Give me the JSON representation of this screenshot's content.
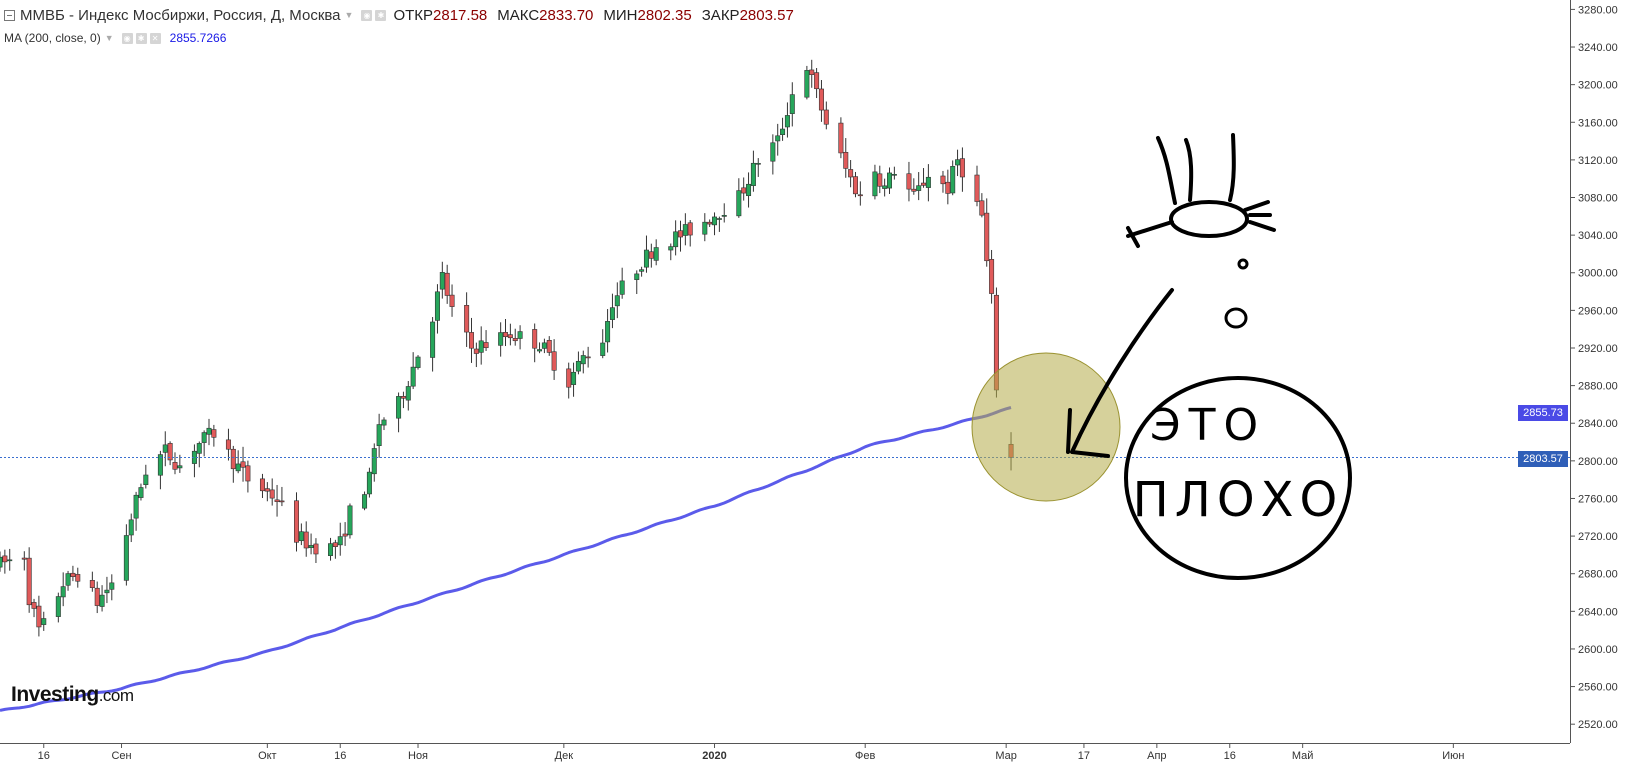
{
  "header": {
    "symbol": "ММВБ - Индекс Мосбиржи, Россия, Д, Москва",
    "open_label": "ОТКР",
    "open_value": "2817.58",
    "high_label": "МАКС",
    "high_value": "2833.70",
    "low_label": "МИН",
    "low_value": "2802.35",
    "close_label": "ЗАКР",
    "close_value": "2803.57"
  },
  "indicator": {
    "label": "MA (200, close, 0)",
    "value": "2855.7266"
  },
  "logo": {
    "main": "Investing",
    "suffix": ".com"
  },
  "price_tags": {
    "ma": "2855.73",
    "close": "2803.57"
  },
  "annotations": {
    "line1": "ЭТО",
    "line2": "ПЛОХО"
  },
  "colors": {
    "up": "#26a65b",
    "down": "#e05a5a",
    "ma_line": "#5b5bea",
    "highlight": "#b5ac48"
  },
  "chart_data": {
    "type": "candlestick",
    "y_axis": {
      "range": [
        2500,
        3290
      ],
      "ticks": [
        "2520.00",
        "2560.00",
        "2600.00",
        "2640.00",
        "2680.00",
        "2720.00",
        "2760.00",
        "2800.00",
        "2840.00",
        "2880.00",
        "2920.00",
        "2960.00",
        "3000.00",
        "3040.00",
        "3080.00",
        "3120.00",
        "3160.00",
        "3200.00",
        "3240.00",
        "3280.00"
      ],
      "tick_values": [
        2520,
        2560,
        2600,
        2640,
        2680,
        2720,
        2760,
        2800,
        2840,
        2880,
        2920,
        2960,
        3000,
        3040,
        3080,
        3120,
        3160,
        3200,
        3240,
        3280
      ]
    },
    "x_axis": {
      "range": [
        "2019-08-07",
        "2020-06-25"
      ],
      "ticks": [
        {
          "date": "2019-08-16",
          "label": "16",
          "bold": false
        },
        {
          "date": "2019-09-01",
          "label": "Сен",
          "bold": false
        },
        {
          "date": "2019-10-01",
          "label": "Окт",
          "bold": false
        },
        {
          "date": "2019-10-16",
          "label": "16",
          "bold": false
        },
        {
          "date": "2019-11-01",
          "label": "Ноя",
          "bold": false
        },
        {
          "date": "2019-12-01",
          "label": "Дек",
          "bold": false
        },
        {
          "date": "2020-01-01",
          "label": "2020",
          "bold": true
        },
        {
          "date": "2020-02-01",
          "label": "Фев",
          "bold": false
        },
        {
          "date": "2020-03-01",
          "label": "Мар",
          "bold": false
        },
        {
          "date": "2020-03-17",
          "label": "17",
          "bold": false
        },
        {
          "date": "2020-04-01",
          "label": "Апр",
          "bold": false
        },
        {
          "date": "2020-04-16",
          "label": "16",
          "bold": false
        },
        {
          "date": "2020-05-01",
          "label": "Май",
          "bold": false
        },
        {
          "date": "2020-06-01",
          "label": "Июн",
          "bold": false
        }
      ]
    },
    "close_price": 2803.57,
    "price_anchors": [
      [
        "2019-08-07",
        2690
      ],
      [
        "2019-08-12",
        2700
      ],
      [
        "2019-08-13",
        2655
      ],
      [
        "2019-08-15",
        2620
      ],
      [
        "2019-08-16",
        2625
      ],
      [
        "2019-08-20",
        2670
      ],
      [
        "2019-08-23",
        2680
      ],
      [
        "2019-08-27",
        2650
      ],
      [
        "2019-08-30",
        2670
      ],
      [
        "2019-09-03",
        2740
      ],
      [
        "2019-09-06",
        2790
      ],
      [
        "2019-09-10",
        2810
      ],
      [
        "2019-09-13",
        2795
      ],
      [
        "2019-09-16",
        2815
      ],
      [
        "2019-09-20",
        2830
      ],
      [
        "2019-09-24",
        2800
      ],
      [
        "2019-09-27",
        2780
      ],
      [
        "2019-09-30",
        2770
      ],
      [
        "2019-10-03",
        2760
      ],
      [
        "2019-10-07",
        2720
      ],
      [
        "2019-10-10",
        2710
      ],
      [
        "2019-10-14",
        2708
      ],
      [
        "2019-10-16",
        2712
      ],
      [
        "2019-10-18",
        2745
      ],
      [
        "2019-10-22",
        2780
      ],
      [
        "2019-10-24",
        2840
      ],
      [
        "2019-10-28",
        2860
      ],
      [
        "2019-10-31",
        2900
      ],
      [
        "2019-11-04",
        2955
      ],
      [
        "2019-11-06",
        2995
      ],
      [
        "2019-11-08",
        2960
      ],
      [
        "2019-11-12",
        2920
      ],
      [
        "2019-11-15",
        2925
      ],
      [
        "2019-11-20",
        2935
      ],
      [
        "2019-11-26",
        2925
      ],
      [
        "2019-12-02",
        2885
      ],
      [
        "2019-12-05",
        2910
      ],
      [
        "2019-12-09",
        2930
      ],
      [
        "2019-12-11",
        2970
      ],
      [
        "2019-12-16",
        3005
      ],
      [
        "2019-12-20",
        3030
      ],
      [
        "2019-12-25",
        3040
      ],
      [
        "2019-12-30",
        3055
      ],
      [
        "2020-01-06",
        3080
      ],
      [
        "2020-01-10",
        3120
      ],
      [
        "2020-01-14",
        3140
      ],
      [
        "2020-01-17",
        3190
      ],
      [
        "2020-01-20",
        3220
      ],
      [
        "2020-01-22",
        3190
      ],
      [
        "2020-01-24",
        3160
      ],
      [
        "2020-01-28",
        3110
      ],
      [
        "2020-01-31",
        3080
      ],
      [
        "2020-02-03",
        3110
      ],
      [
        "2020-02-05",
        3090
      ],
      [
        "2020-02-07",
        3110
      ],
      [
        "2020-02-11",
        3080
      ],
      [
        "2020-02-14",
        3105
      ],
      [
        "2020-02-18",
        3090
      ],
      [
        "2020-02-20",
        3120
      ],
      [
        "2020-02-21",
        3110
      ],
      [
        "2020-02-25",
        3060
      ],
      [
        "2020-02-26",
        3010
      ],
      [
        "2020-02-27",
        2970
      ],
      [
        "2020-02-28",
        2880
      ],
      [
        "2020-03-02",
        2805
      ]
    ],
    "ma200": [
      [
        "2019-08-07",
        2534
      ],
      [
        "2019-09-01",
        2558
      ],
      [
        "2019-10-01",
        2597
      ],
      [
        "2019-11-01",
        2650
      ],
      [
        "2019-12-01",
        2700
      ],
      [
        "2020-01-01",
        2752
      ],
      [
        "2020-01-20",
        2790
      ],
      [
        "2020-02-01",
        2815
      ],
      [
        "2020-02-20",
        2840
      ],
      [
        "2020-03-02",
        2856
      ]
    ]
  }
}
